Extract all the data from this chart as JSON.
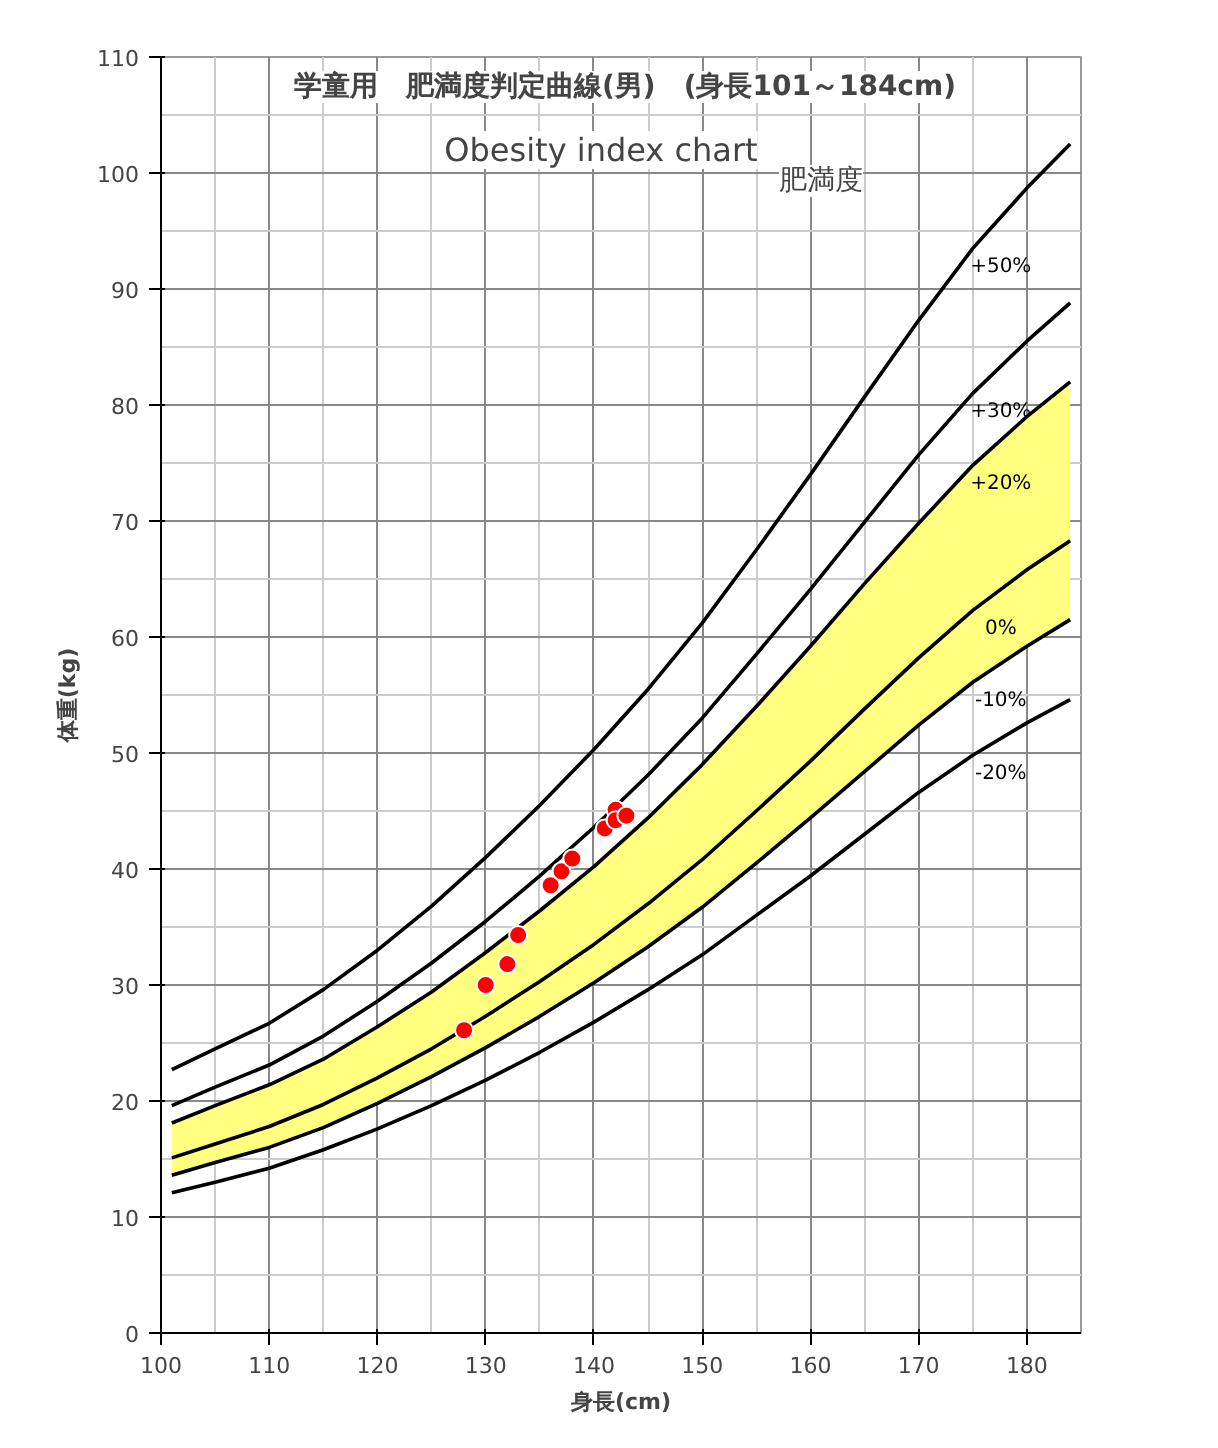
{
  "chart_data": {
    "type": "line",
    "title": "学童用　肥満度判定曲線(男)　(身長101～184cm)",
    "subtitle": "Obesity index chart",
    "xlabel": "身長(cm)",
    "ylabel": "体重(kg)",
    "legend_title": "肥満度",
    "x": [
      101,
      105,
      110,
      115,
      120,
      125,
      130,
      135,
      140,
      145,
      150,
      155,
      160,
      165,
      170,
      175,
      180,
      184
    ],
    "xlim": [
      100,
      185
    ],
    "ylim": [
      0,
      110
    ],
    "xticks": [
      100,
      110,
      120,
      130,
      140,
      150,
      160,
      170,
      180
    ],
    "yticks": [
      0,
      10,
      20,
      30,
      40,
      50,
      60,
      70,
      80,
      90,
      100,
      110
    ],
    "grid": true,
    "marker": "none",
    "line_style": "solid",
    "series": [
      {
        "name": "+50%",
        "color": "#000000",
        "values": [
          22.7,
          24.5,
          26.7,
          29.6,
          33.0,
          36.8,
          41.0,
          45.5,
          50.3,
          55.5,
          61.2,
          67.5,
          74.0,
          80.7,
          87.3,
          93.5,
          98.7,
          102.5
        ]
      },
      {
        "name": "+30%",
        "color": "#000000",
        "values": [
          19.6,
          21.2,
          23.1,
          25.6,
          28.6,
          31.9,
          35.5,
          39.4,
          43.6,
          48.1,
          53.0,
          58.5,
          64.1,
          69.9,
          75.7,
          81.0,
          85.5,
          88.8
        ]
      },
      {
        "name": "+20%",
        "color": "#000000",
        "values": [
          18.1,
          19.6,
          21.4,
          23.6,
          26.4,
          29.4,
          32.8,
          36.4,
          40.2,
          44.4,
          49.0,
          54.0,
          59.2,
          64.6,
          69.8,
          74.8,
          79.0,
          82.0
        ]
      },
      {
        "name": "0%",
        "color": "#000000",
        "values": [
          15.1,
          16.3,
          17.8,
          19.7,
          22.0,
          24.5,
          27.3,
          30.3,
          33.5,
          37.0,
          40.8,
          45.0,
          49.3,
          53.8,
          58.2,
          62.3,
          65.8,
          68.3
        ],
        "lower": [
          13.6,
          14.7,
          16.0,
          17.7,
          19.8,
          22.1,
          24.6,
          27.3,
          30.2,
          33.3,
          36.7,
          40.5,
          44.4,
          48.4,
          52.4,
          56.1,
          59.2,
          61.5
        ],
        "upper": [
          18.1,
          19.6,
          21.4,
          23.6,
          26.4,
          29.4,
          32.8,
          36.4,
          40.2,
          44.4,
          49.0,
          54.0,
          59.2,
          64.6,
          69.8,
          74.8,
          79.0,
          82.0
        ]
      },
      {
        "name": "-10%",
        "color": "#000000",
        "values": [
          13.6,
          14.7,
          16.0,
          17.7,
          19.8,
          22.1,
          24.6,
          27.3,
          30.2,
          33.3,
          36.7,
          40.5,
          44.4,
          48.4,
          52.4,
          56.1,
          59.2,
          61.5
        ]
      },
      {
        "name": "-20%",
        "color": "#000000",
        "values": [
          12.1,
          13.0,
          14.2,
          15.8,
          17.6,
          19.6,
          21.8,
          24.2,
          26.8,
          29.6,
          32.6,
          36.0,
          39.4,
          43.0,
          46.6,
          49.8,
          52.6,
          54.6
        ]
      },
      {
        "type": "scatter",
        "marker": "circle",
        "color": "#ff0000",
        "x": [
          128,
          130,
          132,
          133,
          136,
          137,
          138,
          141,
          142,
          142,
          143
        ],
        "values": [
          26.1,
          30.0,
          31.8,
          34.3,
          38.6,
          39.8,
          40.9,
          43.5,
          45.1,
          44.2,
          44.6
        ]
      }
    ]
  }
}
